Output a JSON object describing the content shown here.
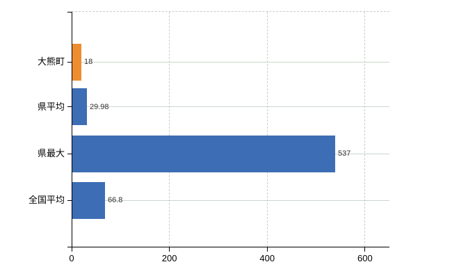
{
  "chart_data": {
    "type": "bar",
    "orientation": "horizontal",
    "title": "",
    "xlabel": "",
    "ylabel": "",
    "xlim": [
      0,
      650
    ],
    "grid": true,
    "legend": "none",
    "categories": [
      "大熊町",
      "県平均",
      "県最大",
      "全国平均"
    ],
    "values": [
      18,
      29.98,
      537,
      66.8
    ],
    "value_labels": [
      "18",
      "29.98",
      "537",
      "66.8"
    ],
    "x_tick_labels": [
      "0",
      "200",
      "400",
      "600"
    ],
    "x_tick_values": [
      0,
      200,
      400,
      600
    ],
    "colors": {
      "bar_highlight": "#EE8C30",
      "bar_default": "#3D6DB4",
      "axis": "#000000",
      "grid_horizontal": "#ccd5cc",
      "grid_vertical": "#c7cfc7",
      "plot_top_border": "#c9c9c9",
      "tick_text": "#000000",
      "value_text": "#333333"
    },
    "bar_colors": [
      "#EE8C30",
      "#3D6DB4",
      "#3D6DB4",
      "#3D6DB4"
    ]
  }
}
